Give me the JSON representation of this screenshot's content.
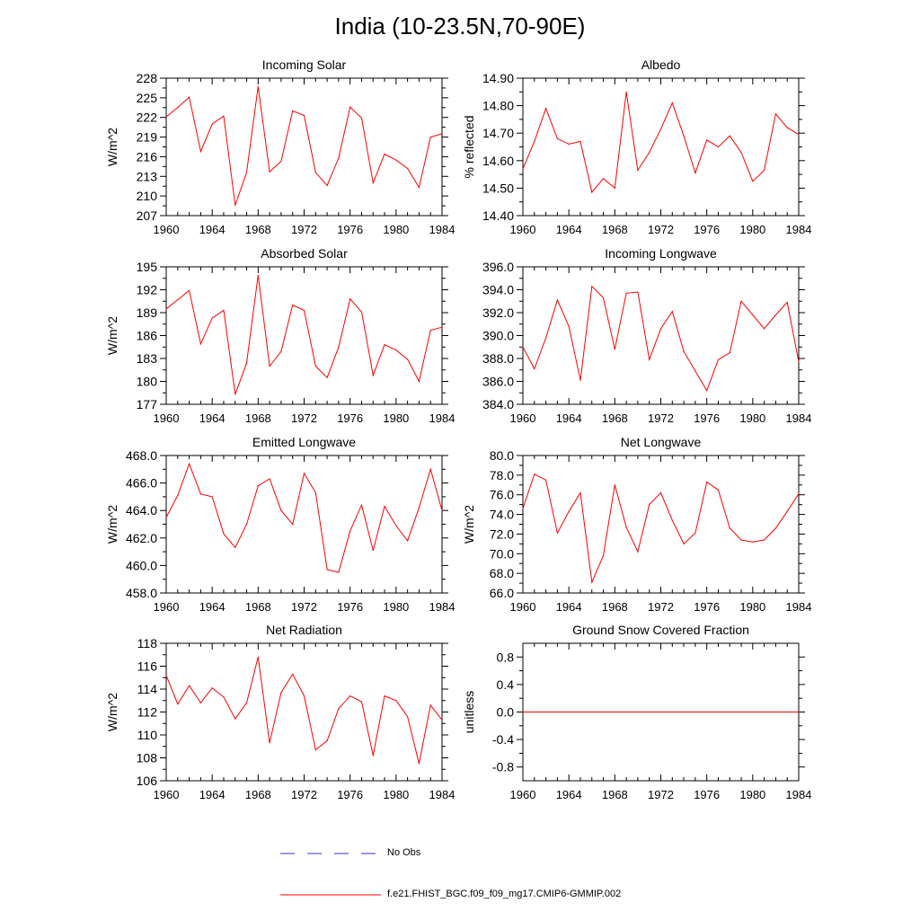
{
  "title": "India (10-23.5N,70-90E)",
  "colors": {
    "model": "#ff0000",
    "obs": "#3333cc",
    "axis": "#000000"
  },
  "legend": {
    "obs_label": "No Obs",
    "model_label": "f.e21.FHIST_BGC.f09_f09_mg17.CMIP6-GMMIP.002"
  },
  "chart_data": [
    {
      "type": "line",
      "title": "Incoming Solar",
      "ylabel": "W/m^2",
      "xlim": [
        1960,
        1984
      ],
      "ylim": [
        207,
        228
      ],
      "xticks": [
        "1960",
        "1964",
        "1968",
        "1972",
        "1976",
        "1980",
        "1984"
      ],
      "yticks": [
        "207",
        "210",
        "213",
        "216",
        "219",
        "222",
        "225",
        "228"
      ],
      "right_ticks": true,
      "series": [
        {
          "x": [
            1960,
            1961,
            1962,
            1963,
            1964,
            1965,
            1966,
            1967,
            1968,
            1969,
            1970,
            1971,
            1972,
            1973,
            1974,
            1975,
            1976,
            1977,
            1978,
            1979,
            1980,
            1981,
            1982,
            1983,
            1984
          ],
          "values": [
            222.1,
            223.5,
            225.1,
            216.8,
            221.0,
            222.2,
            208.6,
            213.6,
            226.7,
            213.7,
            215.3,
            223.0,
            222.3,
            213.6,
            211.6,
            215.8,
            223.6,
            221.9,
            212.0,
            216.4,
            215.5,
            214.2,
            211.3,
            219.0,
            219.5
          ]
        }
      ]
    },
    {
      "type": "line",
      "title": "Albedo",
      "ylabel": "% reflected",
      "xlim": [
        1960,
        1984
      ],
      "ylim": [
        14.4,
        14.9
      ],
      "xticks": [
        "1960",
        "1964",
        "1968",
        "1972",
        "1976",
        "1980",
        "1984"
      ],
      "yticks": [
        "14.40",
        "14.50",
        "14.60",
        "14.70",
        "14.80",
        "14.90"
      ],
      "right_ticks": true,
      "series": [
        {
          "x": [
            1960,
            1961,
            1962,
            1963,
            1964,
            1965,
            1966,
            1967,
            1968,
            1969,
            1970,
            1971,
            1972,
            1973,
            1974,
            1975,
            1976,
            1977,
            1978,
            1979,
            1980,
            1981,
            1982,
            1983,
            1984
          ],
          "values": [
            14.57,
            14.67,
            14.79,
            14.68,
            14.66,
            14.67,
            14.485,
            14.535,
            14.5,
            14.85,
            14.565,
            14.63,
            14.715,
            14.81,
            14.69,
            14.555,
            14.675,
            14.65,
            14.69,
            14.63,
            14.525,
            14.565,
            14.77,
            14.72,
            14.695
          ]
        }
      ]
    },
    {
      "type": "line",
      "title": "Absorbed Solar",
      "ylabel": "W/m^2",
      "xlim": [
        1960,
        1984
      ],
      "ylim": [
        177,
        195
      ],
      "xticks": [
        "1960",
        "1964",
        "1968",
        "1972",
        "1976",
        "1980",
        "1984"
      ],
      "yticks": [
        "177",
        "180",
        "183",
        "186",
        "189",
        "192",
        "195"
      ],
      "right_ticks": true,
      "series": [
        {
          "x": [
            1960,
            1961,
            1962,
            1963,
            1964,
            1965,
            1966,
            1967,
            1968,
            1969,
            1970,
            1971,
            1972,
            1973,
            1974,
            1975,
            1976,
            1977,
            1978,
            1979,
            1980,
            1981,
            1982,
            1983,
            1984
          ],
          "values": [
            189.5,
            190.7,
            191.9,
            184.9,
            188.3,
            189.3,
            178.3,
            182.4,
            193.9,
            182.0,
            183.9,
            190.0,
            189.3,
            182.0,
            180.5,
            184.5,
            190.8,
            189.1,
            180.8,
            184.8,
            184.1,
            182.9,
            180.0,
            186.7,
            187.1
          ]
        }
      ]
    },
    {
      "type": "line",
      "title": "Incoming Longwave",
      "ylabel": "",
      "xlim": [
        1960,
        1984
      ],
      "ylim": [
        384,
        396
      ],
      "xticks": [
        "1960",
        "1964",
        "1968",
        "1972",
        "1976",
        "1980",
        "1984"
      ],
      "yticks": [
        "384.0",
        "386.0",
        "388.0",
        "390.0",
        "392.0",
        "394.0",
        "396.0"
      ],
      "right_ticks": true,
      "series": [
        {
          "x": [
            1960,
            1961,
            1962,
            1963,
            1964,
            1965,
            1966,
            1967,
            1968,
            1969,
            1970,
            1971,
            1972,
            1973,
            1974,
            1975,
            1976,
            1977,
            1978,
            1979,
            1980,
            1981,
            1982,
            1983,
            1984
          ],
          "values": [
            389.0,
            387.1,
            389.8,
            393.1,
            390.8,
            386.1,
            394.3,
            393.3,
            388.8,
            393.7,
            393.8,
            387.9,
            390.6,
            392.1,
            388.6,
            386.9,
            385.2,
            387.9,
            388.5,
            393.0,
            391.8,
            390.6,
            391.8,
            392.9,
            387.7
          ]
        }
      ]
    },
    {
      "type": "line",
      "title": "Emitted Longwave",
      "ylabel": "W/m^2",
      "xlim": [
        1960,
        1984
      ],
      "ylim": [
        458,
        468
      ],
      "xticks": [
        "1960",
        "1964",
        "1968",
        "1972",
        "1976",
        "1980",
        "1984"
      ],
      "yticks": [
        "458.0",
        "460.0",
        "462.0",
        "464.0",
        "466.0",
        "468.0"
      ],
      "right_ticks": true,
      "series": [
        {
          "x": [
            1960,
            1961,
            1962,
            1963,
            1964,
            1965,
            1966,
            1967,
            1968,
            1969,
            1970,
            1971,
            1972,
            1973,
            1974,
            1975,
            1976,
            1977,
            1978,
            1979,
            1980,
            1981,
            1982,
            1983,
            1984
          ],
          "values": [
            463.5,
            465.1,
            467.4,
            465.2,
            465.0,
            462.3,
            461.3,
            463.0,
            465.8,
            466.3,
            464.0,
            463.0,
            466.7,
            465.3,
            459.7,
            459.5,
            462.5,
            464.4,
            461.1,
            464.3,
            462.9,
            461.8,
            464.2,
            467.0,
            464.0
          ]
        }
      ]
    },
    {
      "type": "line",
      "title": "Net Longwave",
      "ylabel": "W/m^2",
      "xlim": [
        1960,
        1984
      ],
      "ylim": [
        66,
        80
      ],
      "xticks": [
        "1960",
        "1964",
        "1968",
        "1972",
        "1976",
        "1980",
        "1984"
      ],
      "yticks": [
        "66.0",
        "68.0",
        "70.0",
        "72.0",
        "74.0",
        "76.0",
        "78.0",
        "80.0"
      ],
      "right_ticks": true,
      "series": [
        {
          "x": [
            1960,
            1961,
            1962,
            1963,
            1964,
            1965,
            1966,
            1967,
            1968,
            1969,
            1970,
            1971,
            1972,
            1973,
            1974,
            1975,
            1976,
            1977,
            1978,
            1979,
            1980,
            1981,
            1982,
            1983,
            1984
          ],
          "values": [
            74.6,
            78.1,
            77.5,
            72.1,
            74.3,
            76.2,
            67.1,
            69.8,
            77.0,
            72.7,
            70.2,
            75.0,
            76.2,
            73.4,
            71.0,
            72.1,
            77.3,
            76.5,
            72.6,
            71.4,
            71.2,
            71.4,
            72.6,
            74.3,
            76.1
          ]
        }
      ]
    },
    {
      "type": "line",
      "title": "Net Radiation",
      "ylabel": "W/m^2",
      "xlim": [
        1960,
        1984
      ],
      "ylim": [
        106,
        118
      ],
      "xticks": [
        "1960",
        "1964",
        "1968",
        "1972",
        "1976",
        "1980",
        "1984"
      ],
      "yticks": [
        "106",
        "108",
        "110",
        "112",
        "114",
        "116",
        "118"
      ],
      "right_ticks": true,
      "series": [
        {
          "x": [
            1960,
            1961,
            1962,
            1963,
            1964,
            1965,
            1966,
            1967,
            1968,
            1969,
            1970,
            1971,
            1972,
            1973,
            1974,
            1975,
            1976,
            1977,
            1978,
            1979,
            1980,
            1981,
            1982,
            1983,
            1984
          ],
          "values": [
            115.2,
            112.7,
            114.3,
            112.8,
            114.1,
            113.3,
            111.4,
            112.8,
            116.8,
            109.3,
            113.7,
            115.3,
            113.4,
            108.7,
            109.5,
            112.3,
            113.4,
            112.9,
            108.2,
            113.4,
            113.0,
            111.6,
            107.5,
            112.6,
            111.3
          ]
        }
      ]
    },
    {
      "type": "line",
      "title": "Ground Snow Covered Fraction",
      "ylabel": "unitless",
      "xlim": [
        1960,
        1984
      ],
      "ylim": [
        -1,
        1
      ],
      "xticks": [
        "1960",
        "1964",
        "1968",
        "1972",
        "1976",
        "1980",
        "1984"
      ],
      "yticks": [
        "-0.8",
        "-0.4",
        "0.0",
        "0.4",
        "0.8"
      ],
      "ytick_values": [
        -0.8,
        -0.4,
        0.0,
        0.4,
        0.8
      ],
      "right_ticks": false,
      "series": [
        {
          "x": [
            1960,
            1984
          ],
          "values": [
            0.0,
            0.0
          ]
        }
      ]
    }
  ]
}
